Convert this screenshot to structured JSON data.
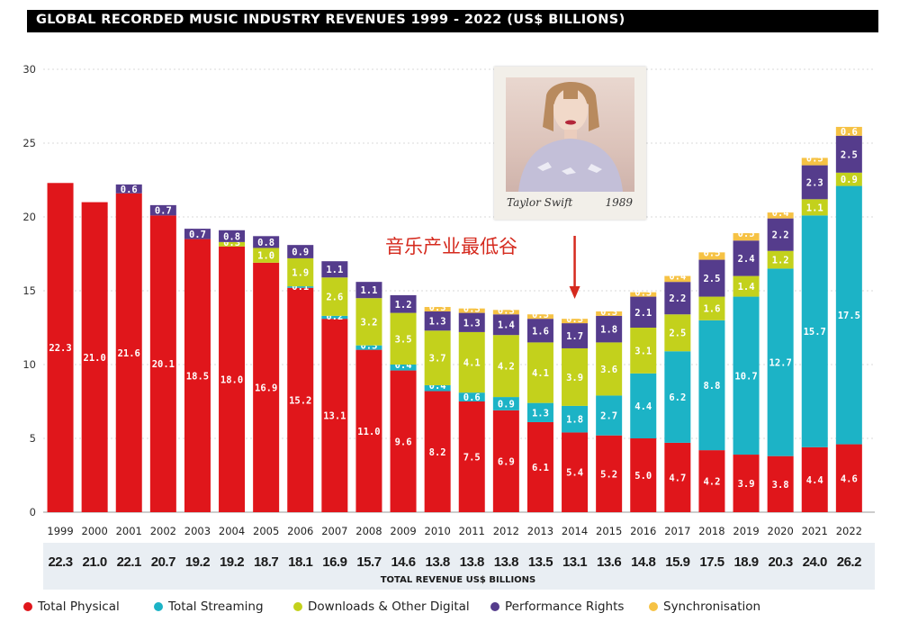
{
  "header": {
    "title": "GLOBAL RECORDED MUSIC INDUSTRY REVENUES 1999 - 2022 (US$ BILLIONS)"
  },
  "annotation": {
    "text": "音乐产业最低谷",
    "target_year": "2014"
  },
  "album": {
    "artist": "Taylor Swift",
    "title": "1989"
  },
  "colors": {
    "physical": "#e0161b",
    "streaming": "#1cb3c6",
    "downloads": "#c3d11c",
    "performance": "#553c8c",
    "sync": "#f6c244",
    "annotation": "#d52a1e",
    "totals_band": "#e9eef3"
  },
  "legend": [
    {
      "key": "physical",
      "label": "Total Physical"
    },
    {
      "key": "streaming",
      "label": "Total Streaming"
    },
    {
      "key": "downloads",
      "label": "Downloads & Other Digital"
    },
    {
      "key": "performance",
      "label": "Performance Rights"
    },
    {
      "key": "sync",
      "label": "Synchronisation"
    }
  ],
  "chart_data": {
    "type": "bar",
    "stacked": true,
    "ylim": [
      0,
      30
    ],
    "yticks": [
      0,
      5,
      10,
      15,
      20,
      25,
      30
    ],
    "grid": true,
    "legend_position": "bottom",
    "categories": [
      "1999",
      "2000",
      "2001",
      "2002",
      "2003",
      "2004",
      "2005",
      "2006",
      "2007",
      "2008",
      "2009",
      "2010",
      "2011",
      "2012",
      "2013",
      "2014",
      "2015",
      "2016",
      "2017",
      "2018",
      "2019",
      "2020",
      "2021",
      "2022"
    ],
    "series": [
      {
        "key": "physical",
        "name": "Total Physical",
        "values": [
          22.3,
          21.0,
          21.6,
          20.1,
          18.5,
          18.0,
          16.9,
          15.2,
          13.1,
          11.0,
          9.6,
          8.2,
          7.5,
          6.9,
          6.1,
          5.4,
          5.2,
          5.0,
          4.7,
          4.2,
          3.9,
          3.8,
          4.4,
          4.6
        ]
      },
      {
        "key": "streaming",
        "name": "Total Streaming",
        "values": [
          0,
          0,
          0,
          0,
          0,
          0,
          0,
          0.1,
          0.2,
          0.3,
          0.4,
          0.4,
          0.6,
          0.9,
          1.3,
          1.8,
          2.7,
          4.4,
          6.2,
          8.8,
          10.7,
          12.7,
          15.7,
          17.5
        ]
      },
      {
        "key": "downloads",
        "name": "Downloads & Other Digital",
        "values": [
          0,
          0,
          0,
          0,
          0,
          0.3,
          1.0,
          1.9,
          2.6,
          3.2,
          3.5,
          3.7,
          4.1,
          4.2,
          4.1,
          3.9,
          3.6,
          3.1,
          2.5,
          1.6,
          1.4,
          1.2,
          1.1,
          0.9
        ]
      },
      {
        "key": "performance",
        "name": "Performance Rights",
        "values": [
          0,
          0,
          0.6,
          0.7,
          0.7,
          0.8,
          0.8,
          0.9,
          1.1,
          1.1,
          1.2,
          1.3,
          1.3,
          1.4,
          1.6,
          1.7,
          1.8,
          2.1,
          2.2,
          2.5,
          2.4,
          2.2,
          2.3,
          2.5
        ]
      },
      {
        "key": "sync",
        "name": "Synchronisation",
        "values": [
          0,
          0,
          0,
          0,
          0,
          0,
          0,
          0,
          0,
          0,
          0,
          0.3,
          0.3,
          0.3,
          0.3,
          0.3,
          0.3,
          0.3,
          0.4,
          0.5,
          0.5,
          0.4,
          0.5,
          0.6
        ]
      }
    ],
    "labels": {
      "physical": [
        "22.3",
        "21.0",
        "21.6",
        "20.1",
        "18.5",
        "18.0",
        "16.9",
        "15.2",
        "13.1",
        "11.0",
        "9.6",
        "8.2",
        "7.5",
        "6.9",
        "6.1",
        "5.4",
        "5.2",
        "5.0",
        "4.7",
        "4.2",
        "3.9",
        "3.8",
        "4.4",
        "4.6"
      ],
      "streaming": [
        "",
        "",
        "",
        "",
        "",
        "",
        "",
        "0.1",
        "0.2",
        "0.3",
        "0.4",
        "0.4",
        "0.6",
        "0.9",
        "1.3",
        "1.8",
        "2.7",
        "4.4",
        "6.2",
        "8.8",
        "10.7",
        "12.7",
        "15.7",
        "17.5"
      ],
      "downloads": [
        "",
        "",
        "",
        "",
        "",
        "0.3",
        "1.0",
        "1.9",
        "2.6",
        "3.2",
        "3.5",
        "3.7",
        "4.1",
        "4.2",
        "4.1",
        "3.9",
        "3.6",
        "3.1",
        "2.5",
        "1.6",
        "1.4",
        "1.2",
        "1.1",
        "0.9"
      ],
      "performance": [
        "",
        "",
        "0.6",
        "0.7",
        "0.7",
        "0.8",
        "0.8",
        "0.9",
        "1.1",
        "1.1",
        "1.2",
        "1.3",
        "1.3",
        "1.4",
        "1.6",
        "1.7",
        "1.8",
        "2.1",
        "2.2",
        "2.5",
        "2.4",
        "2.2",
        "2.3",
        "2.5"
      ],
      "sync": [
        "",
        "",
        "",
        "",
        "",
        "",
        "",
        "",
        "",
        "",
        "",
        "0.3",
        "0.3",
        "0.3",
        "0.3",
        "0.3",
        "0.3",
        "0.3",
        "0.4",
        "0.5",
        "0.5",
        "0.4",
        "0.5",
        "0.6"
      ]
    },
    "totals": [
      "22.3",
      "21.0",
      "22.1",
      "20.7",
      "19.2",
      "19.2",
      "18.7",
      "18.1",
      "16.9",
      "15.7",
      "14.6",
      "13.8",
      "13.8",
      "13.8",
      "13.5",
      "13.1",
      "13.6",
      "14.8",
      "15.9",
      "17.5",
      "18.9",
      "20.3",
      "24.0",
      "26.2"
    ],
    "totals_label": "TOTAL REVENUE US$ BILLIONS"
  }
}
